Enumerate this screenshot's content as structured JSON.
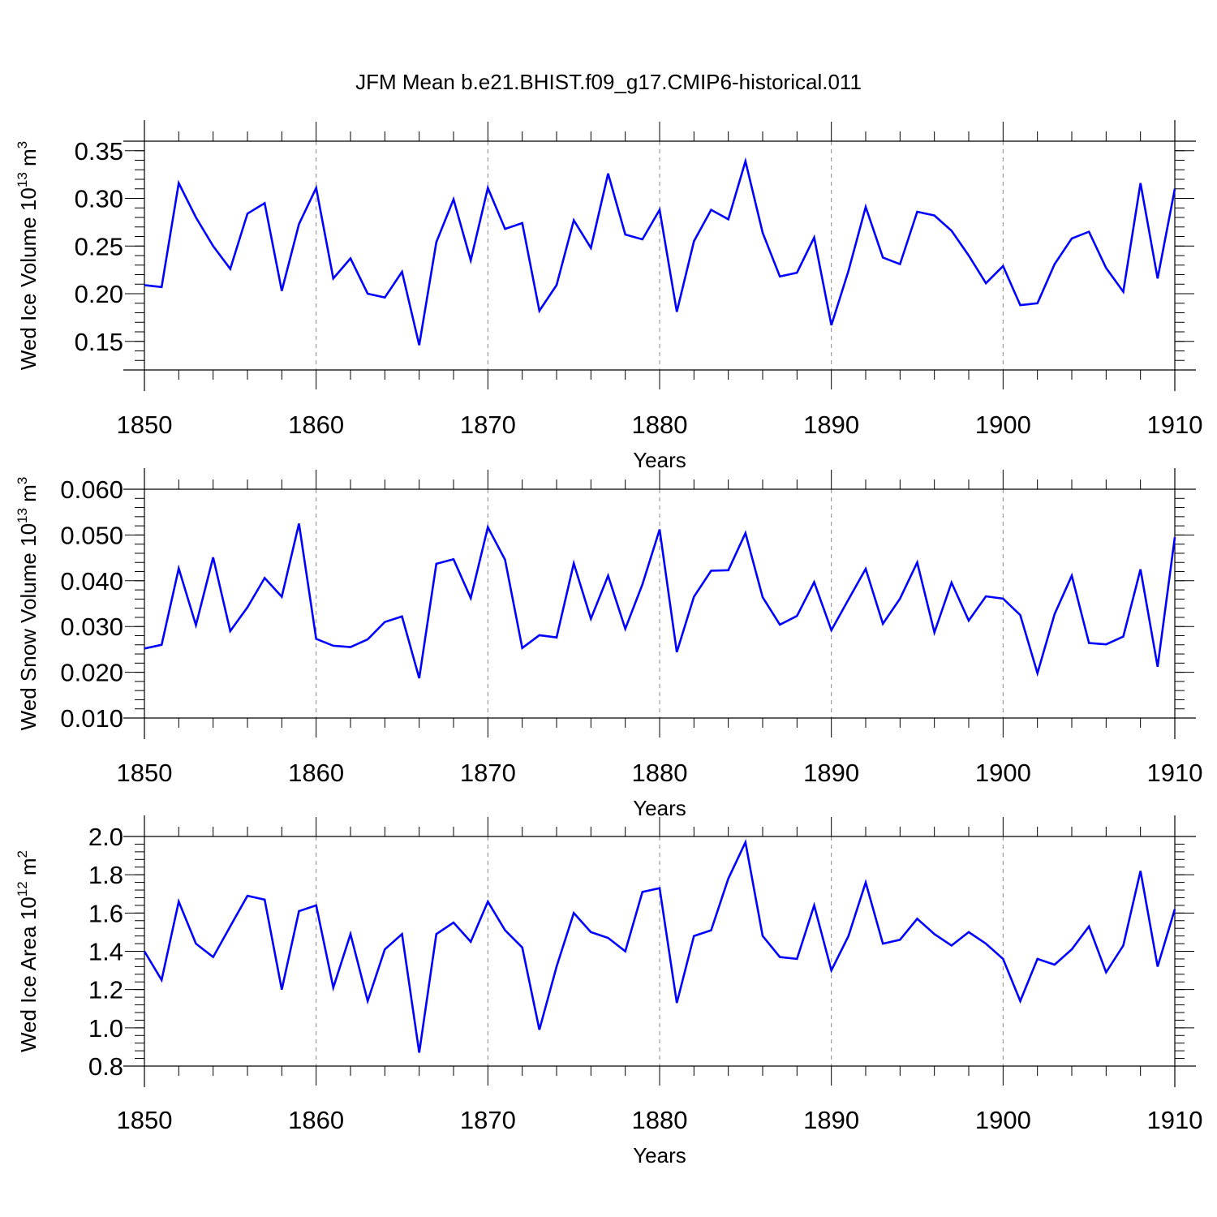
{
  "title": "JFM Mean b.e21.BHIST.f09_g17.CMIP6-historical.011",
  "chart_data": [
    {
      "type": "line",
      "ylabel": "Wed Ice Volume 10",
      "ylabel_exp": "13",
      "ylabel_unit": " m",
      "ylabel_unit_exp": "3",
      "xlabel": "Years",
      "xlim": [
        1850,
        1910
      ],
      "ylim": [
        0.12,
        0.36
      ],
      "yticks": [
        0.15,
        0.2,
        0.25,
        0.3,
        0.35
      ],
      "ytick_labels": [
        "0.15",
        "0.20",
        "0.25",
        "0.30",
        "0.35"
      ],
      "yminor": 0.01,
      "xticks": [
        1850,
        1860,
        1870,
        1880,
        1890,
        1900,
        1910
      ],
      "xtick_labels": [
        "1850",
        "1860",
        "1870",
        "1880",
        "1890",
        "1900",
        "1910"
      ],
      "line_color": "#0000ff",
      "x": [
        1850,
        1851,
        1852,
        1853,
        1854,
        1855,
        1856,
        1857,
        1858,
        1859,
        1860,
        1861,
        1862,
        1863,
        1864,
        1865,
        1866,
        1867,
        1868,
        1869,
        1870,
        1871,
        1872,
        1873,
        1874,
        1875,
        1876,
        1877,
        1878,
        1879,
        1880,
        1881,
        1882,
        1883,
        1884,
        1885,
        1886,
        1887,
        1888,
        1889,
        1890,
        1891,
        1892,
        1893,
        1894,
        1895,
        1896,
        1897,
        1898,
        1899,
        1900,
        1901,
        1902,
        1903,
        1904,
        1905,
        1906,
        1907,
        1908,
        1909,
        1910
      ],
      "values": [
        0.209,
        0.207,
        0.316,
        0.28,
        0.25,
        0.226,
        0.284,
        0.295,
        0.203,
        0.273,
        0.311,
        0.216,
        0.237,
        0.2,
        0.196,
        0.223,
        0.146,
        0.254,
        0.299,
        0.235,
        0.311,
        0.268,
        0.274,
        0.182,
        0.209,
        0.277,
        0.248,
        0.326,
        0.262,
        0.257,
        0.288,
        0.181,
        0.255,
        0.288,
        0.278,
        0.339,
        0.264,
        0.218,
        0.222,
        0.259,
        0.167,
        0.224,
        0.291,
        0.238,
        0.231,
        0.286,
        0.282,
        0.266,
        0.24,
        0.211,
        0.229,
        0.188,
        0.19,
        0.231,
        0.258,
        0.265,
        0.227,
        0.202,
        0.316,
        0.216,
        0.31
      ]
    },
    {
      "type": "line",
      "ylabel": "Wed Snow Volume 10",
      "ylabel_exp": "13",
      "ylabel_unit": " m",
      "ylabel_unit_exp": "3",
      "xlabel": "Years",
      "xlim": [
        1850,
        1910
      ],
      "ylim": [
        0.01,
        0.06
      ],
      "yticks": [
        0.01,
        0.02,
        0.03,
        0.04,
        0.05,
        0.06
      ],
      "ytick_labels": [
        "0.010",
        "0.020",
        "0.030",
        "0.040",
        "0.050",
        "0.060"
      ],
      "yminor": 0.002,
      "xticks": [
        1850,
        1860,
        1870,
        1880,
        1890,
        1900,
        1910
      ],
      "xtick_labels": [
        "1850",
        "1860",
        "1870",
        "1880",
        "1890",
        "1900",
        "1910"
      ],
      "line_color": "#0000ff",
      "x": [
        1850,
        1851,
        1852,
        1853,
        1854,
        1855,
        1856,
        1857,
        1858,
        1859,
        1860,
        1861,
        1862,
        1863,
        1864,
        1865,
        1866,
        1867,
        1868,
        1869,
        1870,
        1871,
        1872,
        1873,
        1874,
        1875,
        1876,
        1877,
        1878,
        1879,
        1880,
        1881,
        1882,
        1883,
        1884,
        1885,
        1886,
        1887,
        1888,
        1889,
        1890,
        1891,
        1892,
        1893,
        1894,
        1895,
        1896,
        1897,
        1898,
        1899,
        1900,
        1901,
        1902,
        1903,
        1904,
        1905,
        1906,
        1907,
        1908,
        1909,
        1910
      ],
      "values": [
        0.0252,
        0.026,
        0.0427,
        0.0303,
        0.0451,
        0.029,
        0.0342,
        0.0406,
        0.0365,
        0.0525,
        0.0273,
        0.0258,
        0.0255,
        0.0272,
        0.031,
        0.0322,
        0.0187,
        0.0437,
        0.0447,
        0.0362,
        0.0517,
        0.0446,
        0.0253,
        0.0281,
        0.0276,
        0.0438,
        0.0317,
        0.0411,
        0.0295,
        0.0392,
        0.0512,
        0.0244,
        0.0365,
        0.0422,
        0.0423,
        0.0504,
        0.0364,
        0.0304,
        0.0323,
        0.0397,
        0.0292,
        0.0359,
        0.0426,
        0.0306,
        0.0361,
        0.044,
        0.0287,
        0.0396,
        0.0313,
        0.0366,
        0.0361,
        0.0325,
        0.0198,
        0.0327,
        0.0411,
        0.0264,
        0.0261,
        0.0278,
        0.0425,
        0.0212,
        0.0495
      ]
    },
    {
      "type": "line",
      "ylabel": "Wed Ice Area 10",
      "ylabel_exp": "12",
      "ylabel_unit": " m",
      "ylabel_unit_exp": "2",
      "xlabel": "Years",
      "xlim": [
        1850,
        1910
      ],
      "ylim": [
        0.8,
        2.0
      ],
      "yticks": [
        0.8,
        1.0,
        1.2,
        1.4,
        1.6,
        1.8,
        2.0
      ],
      "ytick_labels": [
        "0.8",
        "1.0",
        "1.2",
        "1.4",
        "1.6",
        "1.8",
        "2.0"
      ],
      "yminor": 0.04,
      "xticks": [
        1850,
        1860,
        1870,
        1880,
        1890,
        1900,
        1910
      ],
      "xtick_labels": [
        "1850",
        "1860",
        "1870",
        "1880",
        "1890",
        "1900",
        "1910"
      ],
      "line_color": "#0000ff",
      "x": [
        1850,
        1851,
        1852,
        1853,
        1854,
        1855,
        1856,
        1857,
        1858,
        1859,
        1860,
        1861,
        1862,
        1863,
        1864,
        1865,
        1866,
        1867,
        1868,
        1869,
        1870,
        1871,
        1872,
        1873,
        1874,
        1875,
        1876,
        1877,
        1878,
        1879,
        1880,
        1881,
        1882,
        1883,
        1884,
        1885,
        1886,
        1887,
        1888,
        1889,
        1890,
        1891,
        1892,
        1893,
        1894,
        1895,
        1896,
        1897,
        1898,
        1899,
        1900,
        1901,
        1902,
        1903,
        1904,
        1905,
        1906,
        1907,
        1908,
        1909,
        1910
      ],
      "values": [
        1.4,
        1.25,
        1.66,
        1.44,
        1.37,
        1.53,
        1.69,
        1.67,
        1.2,
        1.61,
        1.64,
        1.21,
        1.49,
        1.14,
        1.41,
        1.49,
        0.87,
        1.49,
        1.55,
        1.45,
        1.66,
        1.51,
        1.42,
        0.99,
        1.32,
        1.6,
        1.5,
        1.47,
        1.4,
        1.71,
        1.73,
        1.13,
        1.48,
        1.51,
        1.78,
        1.97,
        1.48,
        1.37,
        1.36,
        1.64,
        1.3,
        1.48,
        1.76,
        1.44,
        1.46,
        1.57,
        1.49,
        1.43,
        1.5,
        1.44,
        1.36,
        1.14,
        1.36,
        1.33,
        1.41,
        1.53,
        1.29,
        1.43,
        1.82,
        1.32,
        1.62
      ]
    }
  ]
}
